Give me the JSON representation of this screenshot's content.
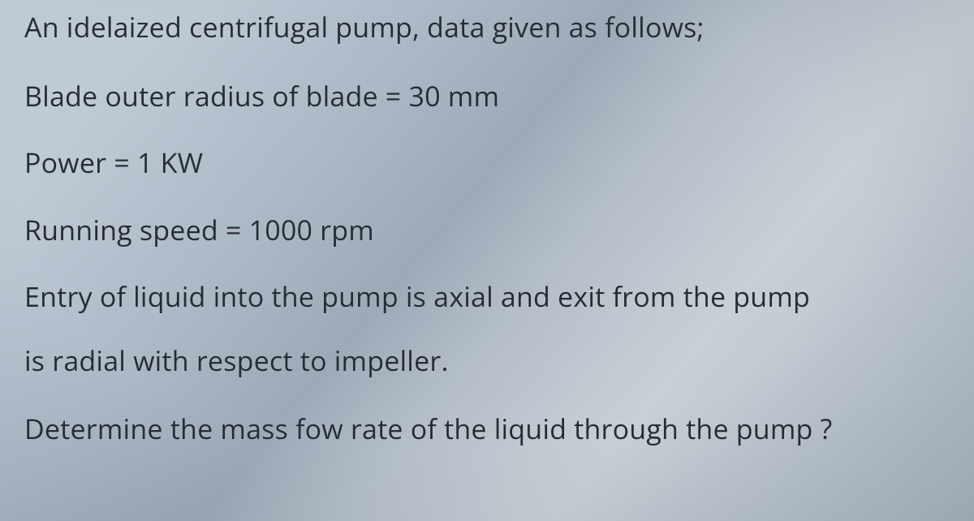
{
  "problem": {
    "lines": [
      "An idelaized centrifugal pump, data given as follows;",
      "Blade outer radius of blade = 30 mm",
      "Power = 1 KW",
      "Running speed = 1000 rpm",
      "Entry of liquid into the pump is axial and exit from the pump",
      "is radial with respect to impeller.",
      "Determine the mass fow rate of the liquid through the pump ?"
    ],
    "typography": {
      "font_family": "Segoe UI / Open Sans sans-serif",
      "font_size_pt": 26,
      "font_weight": 400,
      "text_color": "#272c33"
    },
    "background": {
      "type": "gradient-photo-of-screen",
      "colors": [
        "#c5d1dc",
        "#bcc8d4",
        "#adbac7",
        "#9caab8",
        "#b4bec8",
        "#c8cfd6",
        "#b8c2cc",
        "#aab6c2"
      ]
    }
  }
}
